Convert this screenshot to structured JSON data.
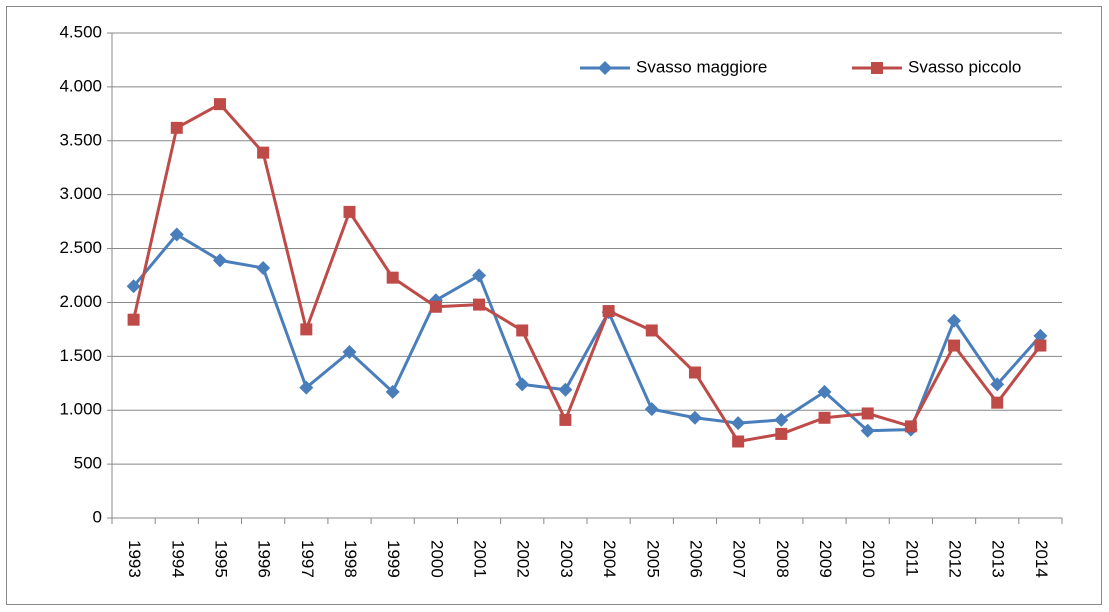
{
  "chart_data": {
    "type": "line",
    "categories": [
      "1993",
      "1994",
      "1995",
      "1996",
      "1997",
      "1998",
      "1999",
      "2000",
      "2001",
      "2002",
      "2003",
      "2004",
      "2005",
      "2006",
      "2007",
      "2008",
      "2009",
      "2010",
      "2011",
      "2012",
      "2013",
      "2014"
    ],
    "series": [
      {
        "name": "Svasso maggiore",
        "color": "#4a7ebb",
        "marker": "diamond",
        "values": [
          2150,
          2630,
          2390,
          2320,
          1210,
          1540,
          1170,
          2020,
          2250,
          1240,
          1190,
          1910,
          1010,
          930,
          880,
          910,
          1170,
          810,
          820,
          1830,
          1240,
          1690
        ]
      },
      {
        "name": "Svasso piccolo",
        "color": "#be4b48",
        "marker": "square",
        "values": [
          1840,
          3620,
          3840,
          3390,
          1750,
          2840,
          2230,
          1960,
          1980,
          1740,
          910,
          1920,
          1740,
          1350,
          710,
          780,
          930,
          970,
          850,
          1600,
          1070,
          1600
        ]
      }
    ],
    "ylim": [
      0,
      4500
    ],
    "yticks": [
      0,
      500,
      {
        "value": 1000,
        "label": "1.000"
      },
      {
        "value": 1500,
        "label": "1.500"
      },
      {
        "value": 2000,
        "label": "2.000"
      },
      {
        "value": 2500,
        "label": "2.500"
      },
      {
        "value": 3000,
        "label": "3.000"
      },
      {
        "value": 3500,
        "label": "3.500"
      },
      {
        "value": 4000,
        "label": "4.000"
      },
      {
        "value": 4500,
        "label": "4.500"
      }
    ],
    "grid": true,
    "legend": "top-right"
  }
}
